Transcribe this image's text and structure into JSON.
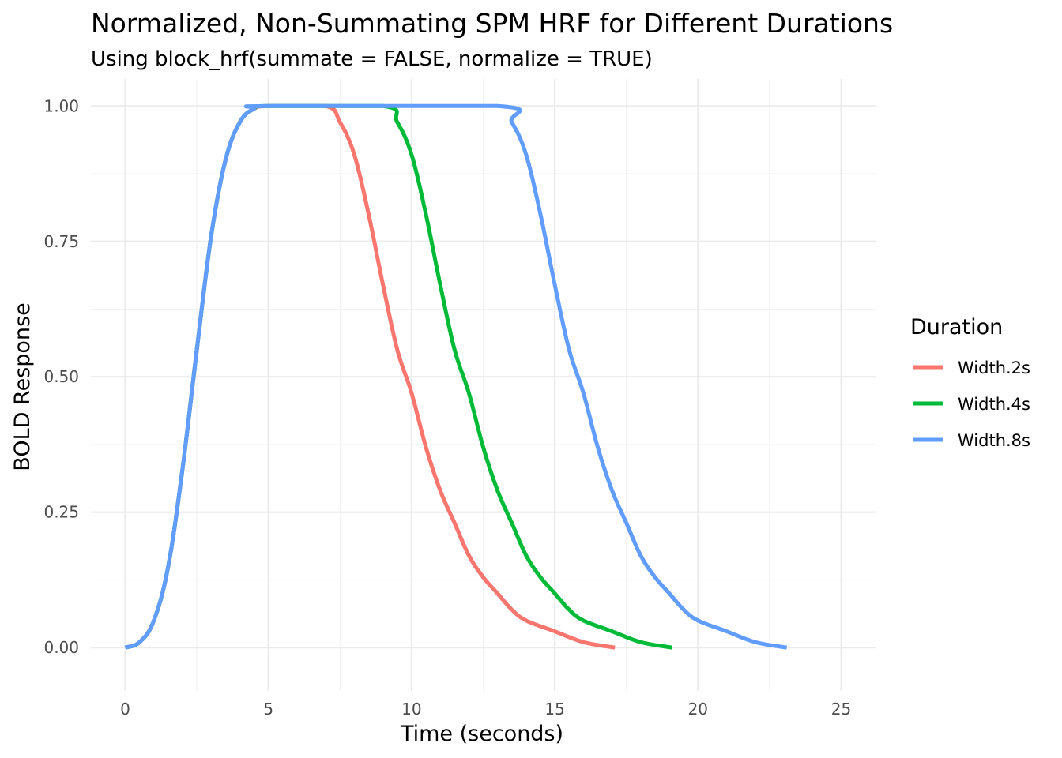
{
  "chart_data": {
    "type": "line",
    "title": "Normalized, Non-Summating SPM HRF for Different Durations",
    "subtitle": "Using block_hrf(summate = FALSE, normalize = TRUE)",
    "xlabel": "Time (seconds)",
    "ylabel": "BOLD Response",
    "xlim": [
      -1.2,
      26.2
    ],
    "ylim": [
      -0.08,
      1.05
    ],
    "x_ticks": [
      0,
      5,
      10,
      15,
      20,
      25
    ],
    "x_tick_labels": [
      "0",
      "5",
      "10",
      "15",
      "20",
      "25"
    ],
    "x_minor_ticks": [
      2.5,
      7.5,
      12.5,
      17.5,
      22.5
    ],
    "y_ticks": [
      0,
      0.25,
      0.5,
      0.75,
      1.0
    ],
    "y_tick_labels": [
      "0.00",
      "0.25",
      "0.50",
      "0.75",
      "1.00"
    ],
    "y_minor_ticks": [
      0.125,
      0.375,
      0.625,
      0.875
    ],
    "grid": true,
    "legend": {
      "title": "Duration",
      "position": "right"
    },
    "series": [
      {
        "name": "Width.2s",
        "color": "#F8766D",
        "x": [
          0,
          0.5,
          1,
          1.5,
          2,
          2.5,
          3,
          3.5,
          4,
          4.5,
          5,
          7,
          7.5,
          8,
          8.5,
          9,
          9.5,
          10,
          10.5,
          11,
          11.5,
          12,
          12.5,
          13,
          13.5,
          14,
          15,
          16,
          17.1
        ],
        "y": [
          0,
          0.01,
          0.05,
          0.15,
          0.33,
          0.55,
          0.76,
          0.9,
          0.97,
          0.995,
          1.0,
          1.0,
          0.97,
          0.91,
          0.8,
          0.67,
          0.55,
          0.47,
          0.37,
          0.29,
          0.23,
          0.17,
          0.13,
          0.1,
          0.07,
          0.05,
          0.03,
          0.01,
          0.0
        ]
      },
      {
        "name": "Width.4s",
        "color": "#00BA38",
        "x": [
          0,
          0.5,
          1,
          1.5,
          2,
          2.5,
          3,
          3.5,
          4,
          4.5,
          5,
          9,
          9.5,
          10,
          10.5,
          11,
          11.5,
          12,
          12.5,
          13,
          13.5,
          14,
          14.5,
          15,
          15.5,
          16,
          17,
          18,
          19.1
        ],
        "y": [
          0,
          0.01,
          0.05,
          0.15,
          0.33,
          0.55,
          0.76,
          0.9,
          0.97,
          0.995,
          1.0,
          1.0,
          0.97,
          0.91,
          0.8,
          0.67,
          0.55,
          0.47,
          0.37,
          0.29,
          0.23,
          0.17,
          0.13,
          0.1,
          0.07,
          0.05,
          0.03,
          0.01,
          0.0
        ]
      },
      {
        "name": "Width.8s",
        "color": "#619CFF",
        "x": [
          0,
          0.5,
          1,
          1.5,
          2,
          2.5,
          3,
          3.5,
          4,
          4.5,
          5,
          13,
          13.5,
          14,
          14.5,
          15,
          15.5,
          16,
          16.5,
          17,
          17.5,
          18,
          18.5,
          19,
          19.5,
          20,
          21,
          22,
          23.1
        ],
        "y": [
          0,
          0.01,
          0.05,
          0.15,
          0.33,
          0.55,
          0.76,
          0.9,
          0.97,
          0.995,
          1.0,
          1.0,
          0.97,
          0.91,
          0.8,
          0.67,
          0.55,
          0.47,
          0.37,
          0.29,
          0.23,
          0.17,
          0.13,
          0.1,
          0.07,
          0.05,
          0.03,
          0.01,
          0.0
        ]
      }
    ]
  }
}
